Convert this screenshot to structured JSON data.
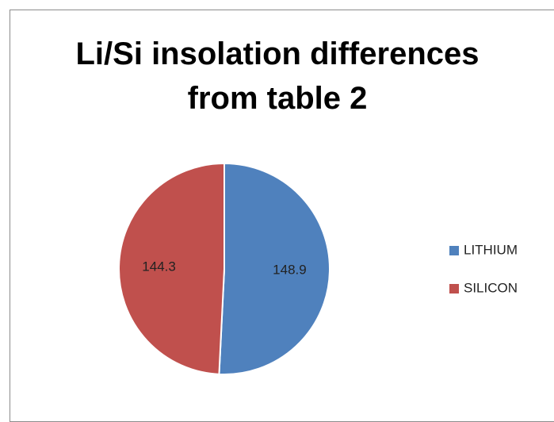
{
  "chart_data": {
    "type": "pie",
    "title": "Li/Si insolation differences from table 2",
    "categories": [
      "LITHIUM",
      "SILICON"
    ],
    "values": [
      148.9,
      144.3
    ],
    "colors": [
      "#4f81bd",
      "#c0504d"
    ],
    "legend": "right"
  }
}
